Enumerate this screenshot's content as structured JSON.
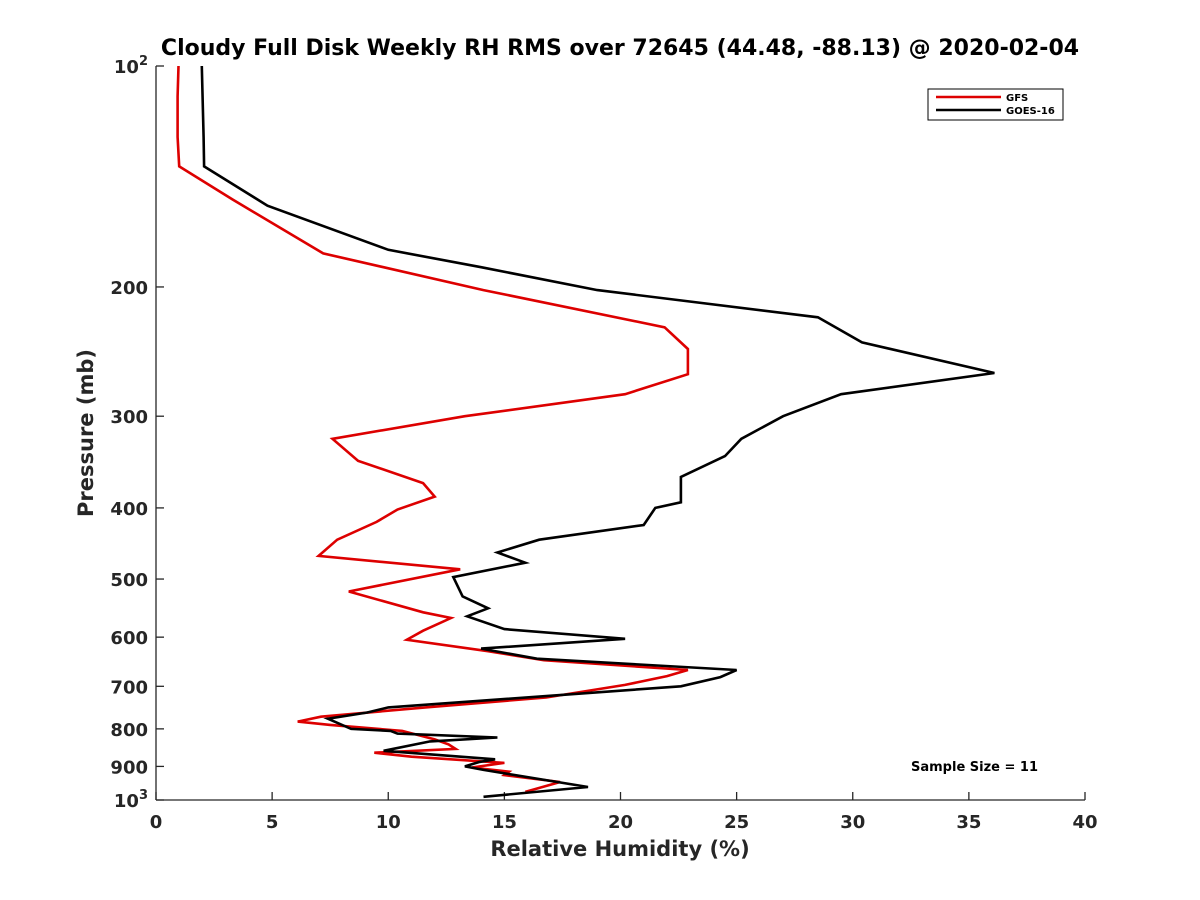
{
  "chart_data": {
    "type": "line",
    "title": "Cloudy Full Disk Weekly RH RMS over 72645 (44.48, -88.13) @ 2020-02-04",
    "xlabel": "Relative Humidity (%)",
    "ylabel": "Pressure (mb)",
    "xlim": [
      0,
      40
    ],
    "ylim": [
      100,
      1000
    ],
    "y_scale": "log",
    "y_reversed": true,
    "x_ticks": [
      "0",
      "5",
      "10",
      "15",
      "20",
      "25",
      "30",
      "35",
      "40"
    ],
    "y_ticks": [
      {
        "value": 100,
        "base": "10",
        "exp": "2"
      },
      {
        "value": 200,
        "label": "200"
      },
      {
        "value": 300,
        "label": "300"
      },
      {
        "value": 400,
        "label": "400"
      },
      {
        "value": 500,
        "label": "500"
      },
      {
        "value": 600,
        "label": "600"
      },
      {
        "value": 700,
        "label": "700"
      },
      {
        "value": 800,
        "label": "800"
      },
      {
        "value": 900,
        "label": "900"
      },
      {
        "value": 1000,
        "base": "10",
        "exp": "3"
      }
    ],
    "legend_position": "top-right",
    "annotation": "Sample Size = 11",
    "series": [
      {
        "name": "GFS",
        "color": "#dd0000",
        "points": [
          [
            0.97,
            100
          ],
          [
            0.93,
            110
          ],
          [
            0.93,
            125
          ],
          [
            1.0,
            137
          ],
          [
            3.3,
            152
          ],
          [
            7.2,
            180
          ],
          [
            14.1,
            202
          ],
          [
            21.9,
            227
          ],
          [
            22.9,
            243
          ],
          [
            22.9,
            263
          ],
          [
            20.2,
            280
          ],
          [
            13.3,
            300
          ],
          [
            7.6,
            322
          ],
          [
            8.7,
            345
          ],
          [
            11.5,
            370
          ],
          [
            12.0,
            386
          ],
          [
            10.4,
            402
          ],
          [
            9.5,
            418
          ],
          [
            7.8,
            442
          ],
          [
            7.0,
            465
          ],
          [
            13.1,
            485
          ],
          [
            8.3,
            520
          ],
          [
            11.5,
            555
          ],
          [
            12.7,
            565
          ],
          [
            11.5,
            588
          ],
          [
            10.8,
            605
          ],
          [
            14.3,
            627
          ],
          [
            16.7,
            645
          ],
          [
            22.9,
            665
          ],
          [
            22.0,
            678
          ],
          [
            20.2,
            697
          ],
          [
            16.8,
            725
          ],
          [
            11.6,
            748
          ],
          [
            7.1,
            770
          ],
          [
            6.1,
            782
          ],
          [
            7.5,
            790
          ],
          [
            10.6,
            805
          ],
          [
            12.0,
            827
          ],
          [
            12.6,
            840
          ],
          [
            12.9,
            852
          ],
          [
            9.4,
            862
          ],
          [
            11.0,
            873
          ],
          [
            15.0,
            890
          ],
          [
            13.6,
            903
          ],
          [
            15.2,
            915
          ],
          [
            15.0,
            925
          ],
          [
            17.4,
            945
          ],
          [
            15.9,
            975
          ]
        ]
      },
      {
        "name": "GOES-16",
        "color": "#000000",
        "points": [
          [
            1.97,
            100
          ],
          [
            2.05,
            125
          ],
          [
            2.07,
            137
          ],
          [
            4.8,
            155
          ],
          [
            10.0,
            178
          ],
          [
            14.0,
            188
          ],
          [
            19.0,
            202
          ],
          [
            28.5,
            220
          ],
          [
            30.4,
            238
          ],
          [
            36.1,
            262
          ],
          [
            29.5,
            280
          ],
          [
            27.0,
            300
          ],
          [
            25.2,
            322
          ],
          [
            24.5,
            340
          ],
          [
            22.6,
            363
          ],
          [
            22.6,
            393
          ],
          [
            21.5,
            400
          ],
          [
            21.0,
            422
          ],
          [
            16.5,
            442
          ],
          [
            14.7,
            460
          ],
          [
            15.9,
            475
          ],
          [
            12.8,
            497
          ],
          [
            13.2,
            528
          ],
          [
            14.3,
            548
          ],
          [
            13.4,
            562
          ],
          [
            15.0,
            585
          ],
          [
            20.2,
            603
          ],
          [
            14.0,
            622
          ],
          [
            16.4,
            642
          ],
          [
            25.0,
            665
          ],
          [
            24.3,
            680
          ],
          [
            22.6,
            700
          ],
          [
            10.0,
            748
          ],
          [
            9.1,
            760
          ],
          [
            7.4,
            775
          ],
          [
            8.4,
            800
          ],
          [
            10.1,
            805
          ],
          [
            10.4,
            812
          ],
          [
            14.7,
            822
          ],
          [
            11.8,
            832
          ],
          [
            9.8,
            857
          ],
          [
            14.6,
            880
          ],
          [
            13.9,
            888
          ],
          [
            13.3,
            900
          ],
          [
            14.1,
            910
          ],
          [
            18.6,
            960
          ],
          [
            14.1,
            990
          ]
        ]
      }
    ]
  }
}
